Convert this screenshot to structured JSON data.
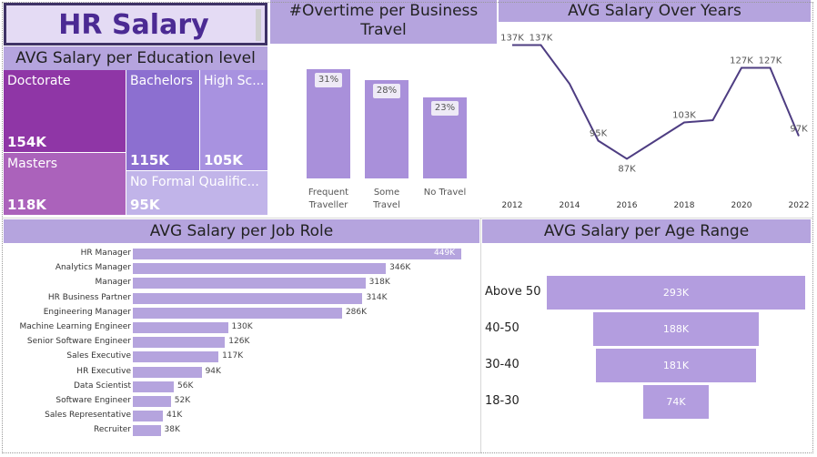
{
  "title": "HR Salary",
  "colors": {
    "accent": "#b5a4de",
    "title_text": "#4b2a93",
    "title_border": "#3f3366",
    "line": "#4e3d82"
  },
  "education": {
    "header": "AVG Salary per Education level",
    "tiles": [
      {
        "label": "Doctorate",
        "value": "154K",
        "color": "#8f36a6"
      },
      {
        "label": "Bachelors",
        "value": "115K",
        "color": "#8c6fd0"
      },
      {
        "label": "High Sc...",
        "value": "105K",
        "color": "#a892e0"
      },
      {
        "label": "Masters",
        "value": "118K",
        "color": "#ab62bb"
      },
      {
        "label": "No Formal Qualific...",
        "value": "95K",
        "color": "#c1b4e9"
      }
    ]
  },
  "overtime": {
    "header": "#Overtime per Business Travel",
    "bars": [
      {
        "label_line1": "Frequent",
        "label_line2": "Traveller",
        "pct": "31%",
        "value": 31
      },
      {
        "label_line1": "Some",
        "label_line2": "Travel",
        "pct": "28%",
        "value": 28
      },
      {
        "label_line1": "No Travel",
        "label_line2": "",
        "pct": "23%",
        "value": 23
      }
    ]
  },
  "chart_data": [
    {
      "type": "line",
      "title": "AVG Salary Over Years",
      "x": [
        2012,
        2013,
        2014,
        2015,
        2016,
        2017,
        2018,
        2019,
        2020,
        2021,
        2022
      ],
      "values": [
        137,
        137,
        120,
        95,
        87,
        95,
        103,
        104,
        127,
        127,
        97
      ],
      "point_labels": [
        "137K",
        "137K",
        "",
        "95K",
        "87K",
        "",
        "103K",
        "",
        "127K",
        "127K",
        "97K"
      ],
      "x_ticks": [
        "2012",
        "2014",
        "2016",
        "2018",
        "2020",
        "2022"
      ],
      "ylim": [
        80,
        140
      ]
    },
    {
      "type": "bar",
      "orientation": "horizontal",
      "title": "AVG Salary per Job Role",
      "categories": [
        "HR Manager",
        "Analytics Manager",
        "Manager",
        "HR Business Partner",
        "Engineering Manager",
        "Machine Learning Engineer",
        "Senior Software Engineer",
        "Sales Executive",
        "HR Executive",
        "Data Scientist",
        "Software Engineer",
        "Sales Representative",
        "Recruiter"
      ],
      "values": [
        449,
        346,
        318,
        314,
        286,
        130,
        126,
        117,
        94,
        56,
        52,
        41,
        38
      ],
      "data_labels": [
        "449K",
        "346K",
        "318K",
        "314K",
        "286K",
        "130K",
        "126K",
        "117K",
        "94K",
        "56K",
        "52K",
        "41K",
        "38K"
      ]
    },
    {
      "type": "bar",
      "orientation": "funnel",
      "title": "AVG Salary per Age Range",
      "categories": [
        "Above 50",
        "40-50",
        "30-40",
        "18-30"
      ],
      "values": [
        293,
        188,
        181,
        74
      ],
      "data_labels": [
        "293K",
        "188K",
        "181K",
        "74K"
      ]
    }
  ]
}
